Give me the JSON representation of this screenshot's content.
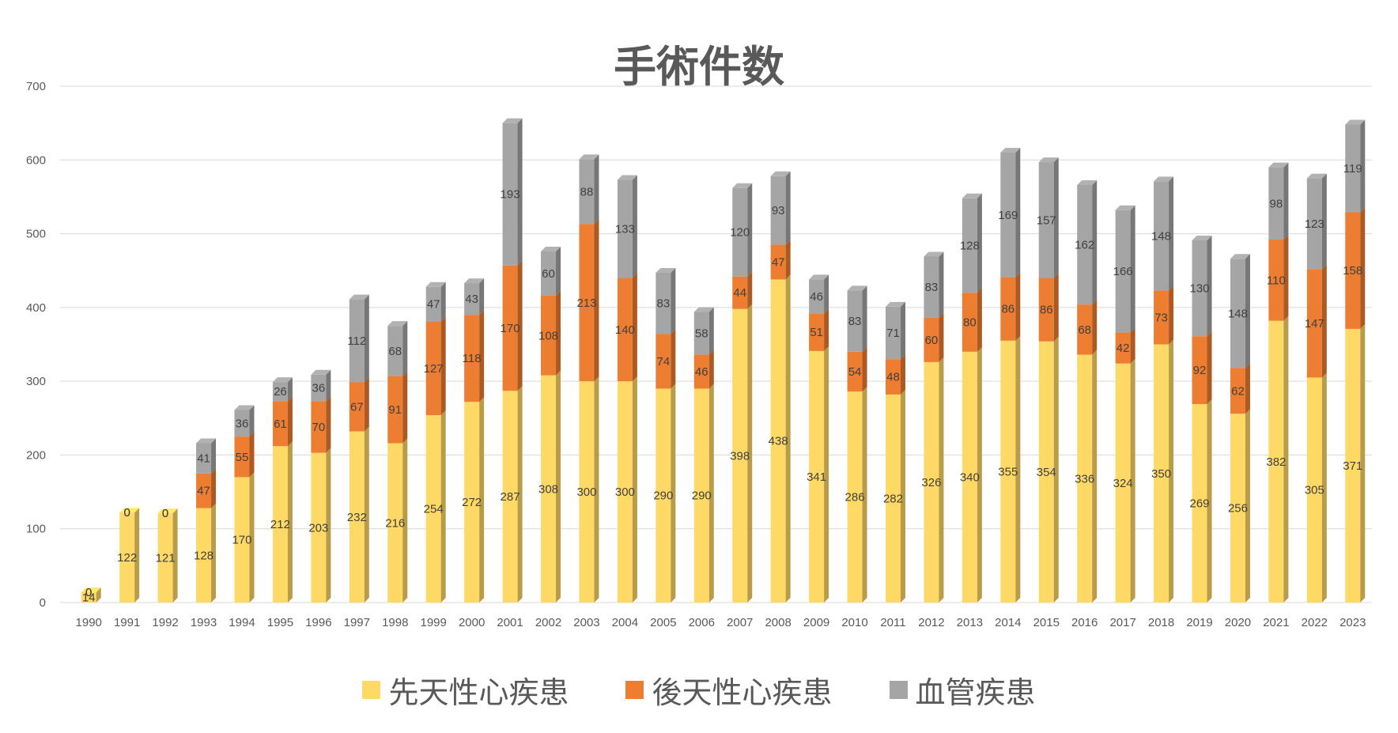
{
  "chart_data": {
    "type": "bar",
    "stacked": true,
    "style": "3d-column",
    "title": "手術件数",
    "ylim": [
      0,
      700
    ],
    "yticks": [
      0,
      100,
      200,
      300,
      400,
      500,
      600,
      700
    ],
    "grid": true,
    "legend_position": "bottom",
    "categories": [
      "1990",
      "1991",
      "1992",
      "1993",
      "1994",
      "1995",
      "1996",
      "1997",
      "1998",
      "1999",
      "2000",
      "2001",
      "2002",
      "2003",
      "2004",
      "2005",
      "2006",
      "2007",
      "2008",
      "2009",
      "2010",
      "2011",
      "2012",
      "2013",
      "2014",
      "2015",
      "2016",
      "2017",
      "2018",
      "2019",
      "2020",
      "2021",
      "2022",
      "2023"
    ],
    "series": [
      {
        "name": "先天性心疾患",
        "color": "#FFD966",
        "values": [
          14,
          122,
          121,
          128,
          170,
          212,
          203,
          232,
          216,
          254,
          272,
          287,
          308,
          300,
          300,
          290,
          290,
          398,
          438,
          341,
          286,
          282,
          326,
          340,
          355,
          354,
          336,
          324,
          350,
          269,
          256,
          382,
          305,
          371
        ]
      },
      {
        "name": "後天性心疾患",
        "color": "#ED7D31",
        "values": [
          0,
          0,
          0,
          47,
          55,
          61,
          70,
          67,
          91,
          127,
          118,
          170,
          108,
          213,
          140,
          74,
          46,
          44,
          47,
          51,
          54,
          48,
          60,
          80,
          86,
          86,
          68,
          42,
          73,
          92,
          62,
          110,
          147,
          158
        ]
      },
      {
        "name": "血管疾患",
        "color": "#A5A5A5",
        "values": [
          0,
          0,
          0,
          41,
          36,
          26,
          36,
          112,
          68,
          47,
          43,
          193,
          60,
          88,
          133,
          83,
          58,
          120,
          93,
          46,
          83,
          71,
          83,
          128,
          169,
          157,
          162,
          166,
          148,
          130,
          148,
          98,
          123,
          119
        ]
      }
    ]
  }
}
